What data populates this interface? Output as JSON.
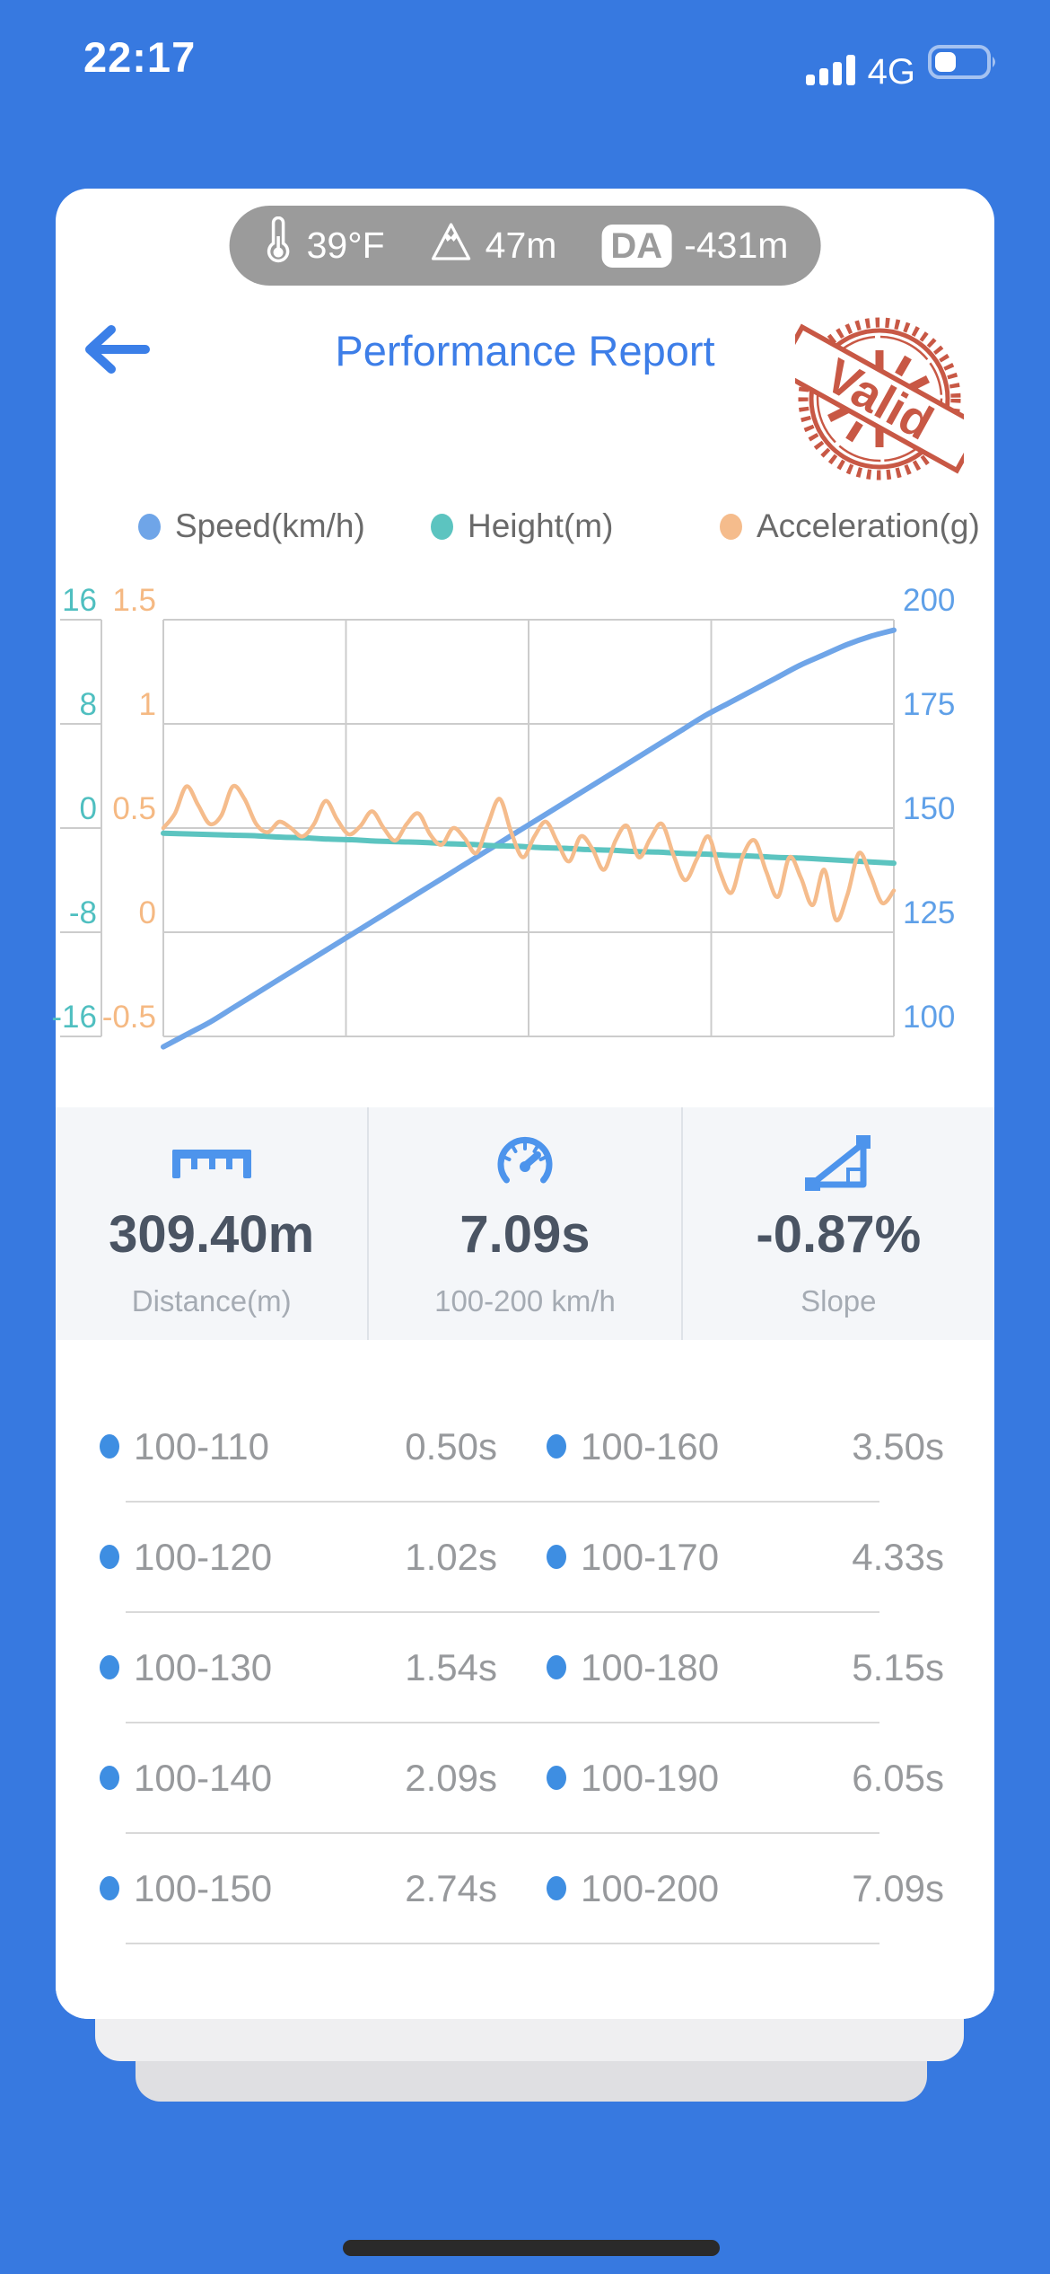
{
  "status_bar": {
    "time": "22:17",
    "network": "4G"
  },
  "info_pill": {
    "temperature": "39°F",
    "altitude": "47m",
    "da_label": "DA",
    "da_value": "-431m"
  },
  "header": {
    "title": "Performance Report",
    "stamp_text": "Valid",
    "stamp_color": "#C6503C"
  },
  "legend": [
    {
      "label": "Speed(km/h)",
      "color": "#6FA5E8"
    },
    {
      "label": "Height(m)",
      "color": "#5CC4C0"
    },
    {
      "label": "Acceleration(g)",
      "color": "#F5BC8C"
    }
  ],
  "chart_data": {
    "type": "line",
    "x_axis": "run progress (no visible x labels)",
    "grid": true,
    "axes": {
      "height": {
        "title": "Height(m)",
        "labels": [
          "16",
          "8",
          "0",
          "-8",
          "-16"
        ],
        "range": [
          -16,
          16
        ],
        "color": "#4FBFC0",
        "position": "far-left"
      },
      "accel": {
        "title": "Acceleration(g)",
        "labels": [
          "1.5",
          "1",
          "0.5",
          "0",
          "-0.5"
        ],
        "range": [
          -0.5,
          1.5
        ],
        "color": "#F5B983",
        "position": "left"
      },
      "speed": {
        "title": "Speed(km/h)",
        "labels": [
          "200",
          "175",
          "150",
          "125",
          "100"
        ],
        "range": [
          100,
          200
        ],
        "color": "#5FA0E8",
        "position": "right"
      }
    },
    "series": [
      {
        "name": "Speed(km/h)",
        "axis": "speed",
        "color": "#6FA5E8",
        "width": 6,
        "values": [
          97.5,
          100.5,
          103.5,
          107,
          110.5,
          114,
          117.5,
          121,
          124.5,
          128,
          131.5,
          135,
          138.5,
          142,
          145.5,
          149,
          152.5,
          156,
          159.5,
          163,
          166.5,
          170,
          173.5,
          177,
          180,
          183,
          186,
          189,
          191.5,
          194,
          196,
          197.5
        ]
      },
      {
        "name": "Height(m)",
        "axis": "height",
        "color": "#5CC4C0",
        "width": 6,
        "values": [
          -0.4,
          -0.45,
          -0.5,
          -0.55,
          -0.6,
          -0.7,
          -0.75,
          -0.85,
          -0.9,
          -1.0,
          -1.05,
          -1.1,
          -1.2,
          -1.25,
          -1.35,
          -1.4,
          -1.5,
          -1.55,
          -1.65,
          -1.7,
          -1.8,
          -1.85,
          -1.95,
          -2.0,
          -2.1,
          -2.15,
          -2.25,
          -2.3,
          -2.4,
          -2.5,
          -2.6,
          -2.7
        ]
      },
      {
        "name": "Acceleration(g)",
        "axis": "accel",
        "color": "#F5BC8C",
        "width": 4.5,
        "values": [
          0.5,
          0.57,
          0.7,
          0.61,
          0.52,
          0.56,
          0.7,
          0.64,
          0.52,
          0.48,
          0.53,
          0.5,
          0.46,
          0.52,
          0.63,
          0.54,
          0.47,
          0.51,
          0.58,
          0.5,
          0.44,
          0.52,
          0.57,
          0.47,
          0.42,
          0.5,
          0.45,
          0.38,
          0.52,
          0.64,
          0.48,
          0.36,
          0.46,
          0.53,
          0.43,
          0.34,
          0.46,
          0.4,
          0.3,
          0.44,
          0.51,
          0.36,
          0.45,
          0.52,
          0.37,
          0.25,
          0.35,
          0.46,
          0.29,
          0.19,
          0.37,
          0.44,
          0.29,
          0.17,
          0.36,
          0.26,
          0.13,
          0.3,
          0.06,
          0.18,
          0.38,
          0.27,
          0.14,
          0.2
        ]
      }
    ],
    "gridline_color": "#CCCCCC"
  },
  "stats": [
    {
      "icon": "ruler-icon",
      "value": "309.40m",
      "label": "Distance(m)"
    },
    {
      "icon": "speedometer-icon",
      "value": "7.09s",
      "label": "100-200 km/h"
    },
    {
      "icon": "slope-icon",
      "value": "-0.87%",
      "label": "Slope"
    }
  ],
  "splits": {
    "rows": [
      {
        "left_range": "100-110",
        "left_time": "0.50s",
        "right_range": "100-160",
        "right_time": "3.50s"
      },
      {
        "left_range": "100-120",
        "left_time": "1.02s",
        "right_range": "100-170",
        "right_time": "4.33s"
      },
      {
        "left_range": "100-130",
        "left_time": "1.54s",
        "right_range": "100-180",
        "right_time": "5.15s"
      },
      {
        "left_range": "100-140",
        "left_time": "2.09s",
        "right_range": "100-190",
        "right_time": "6.05s"
      },
      {
        "left_range": "100-150",
        "left_time": "2.74s",
        "right_range": "100-200",
        "right_time": "7.09s"
      }
    ],
    "bullet_color": "#3E8EE2"
  }
}
